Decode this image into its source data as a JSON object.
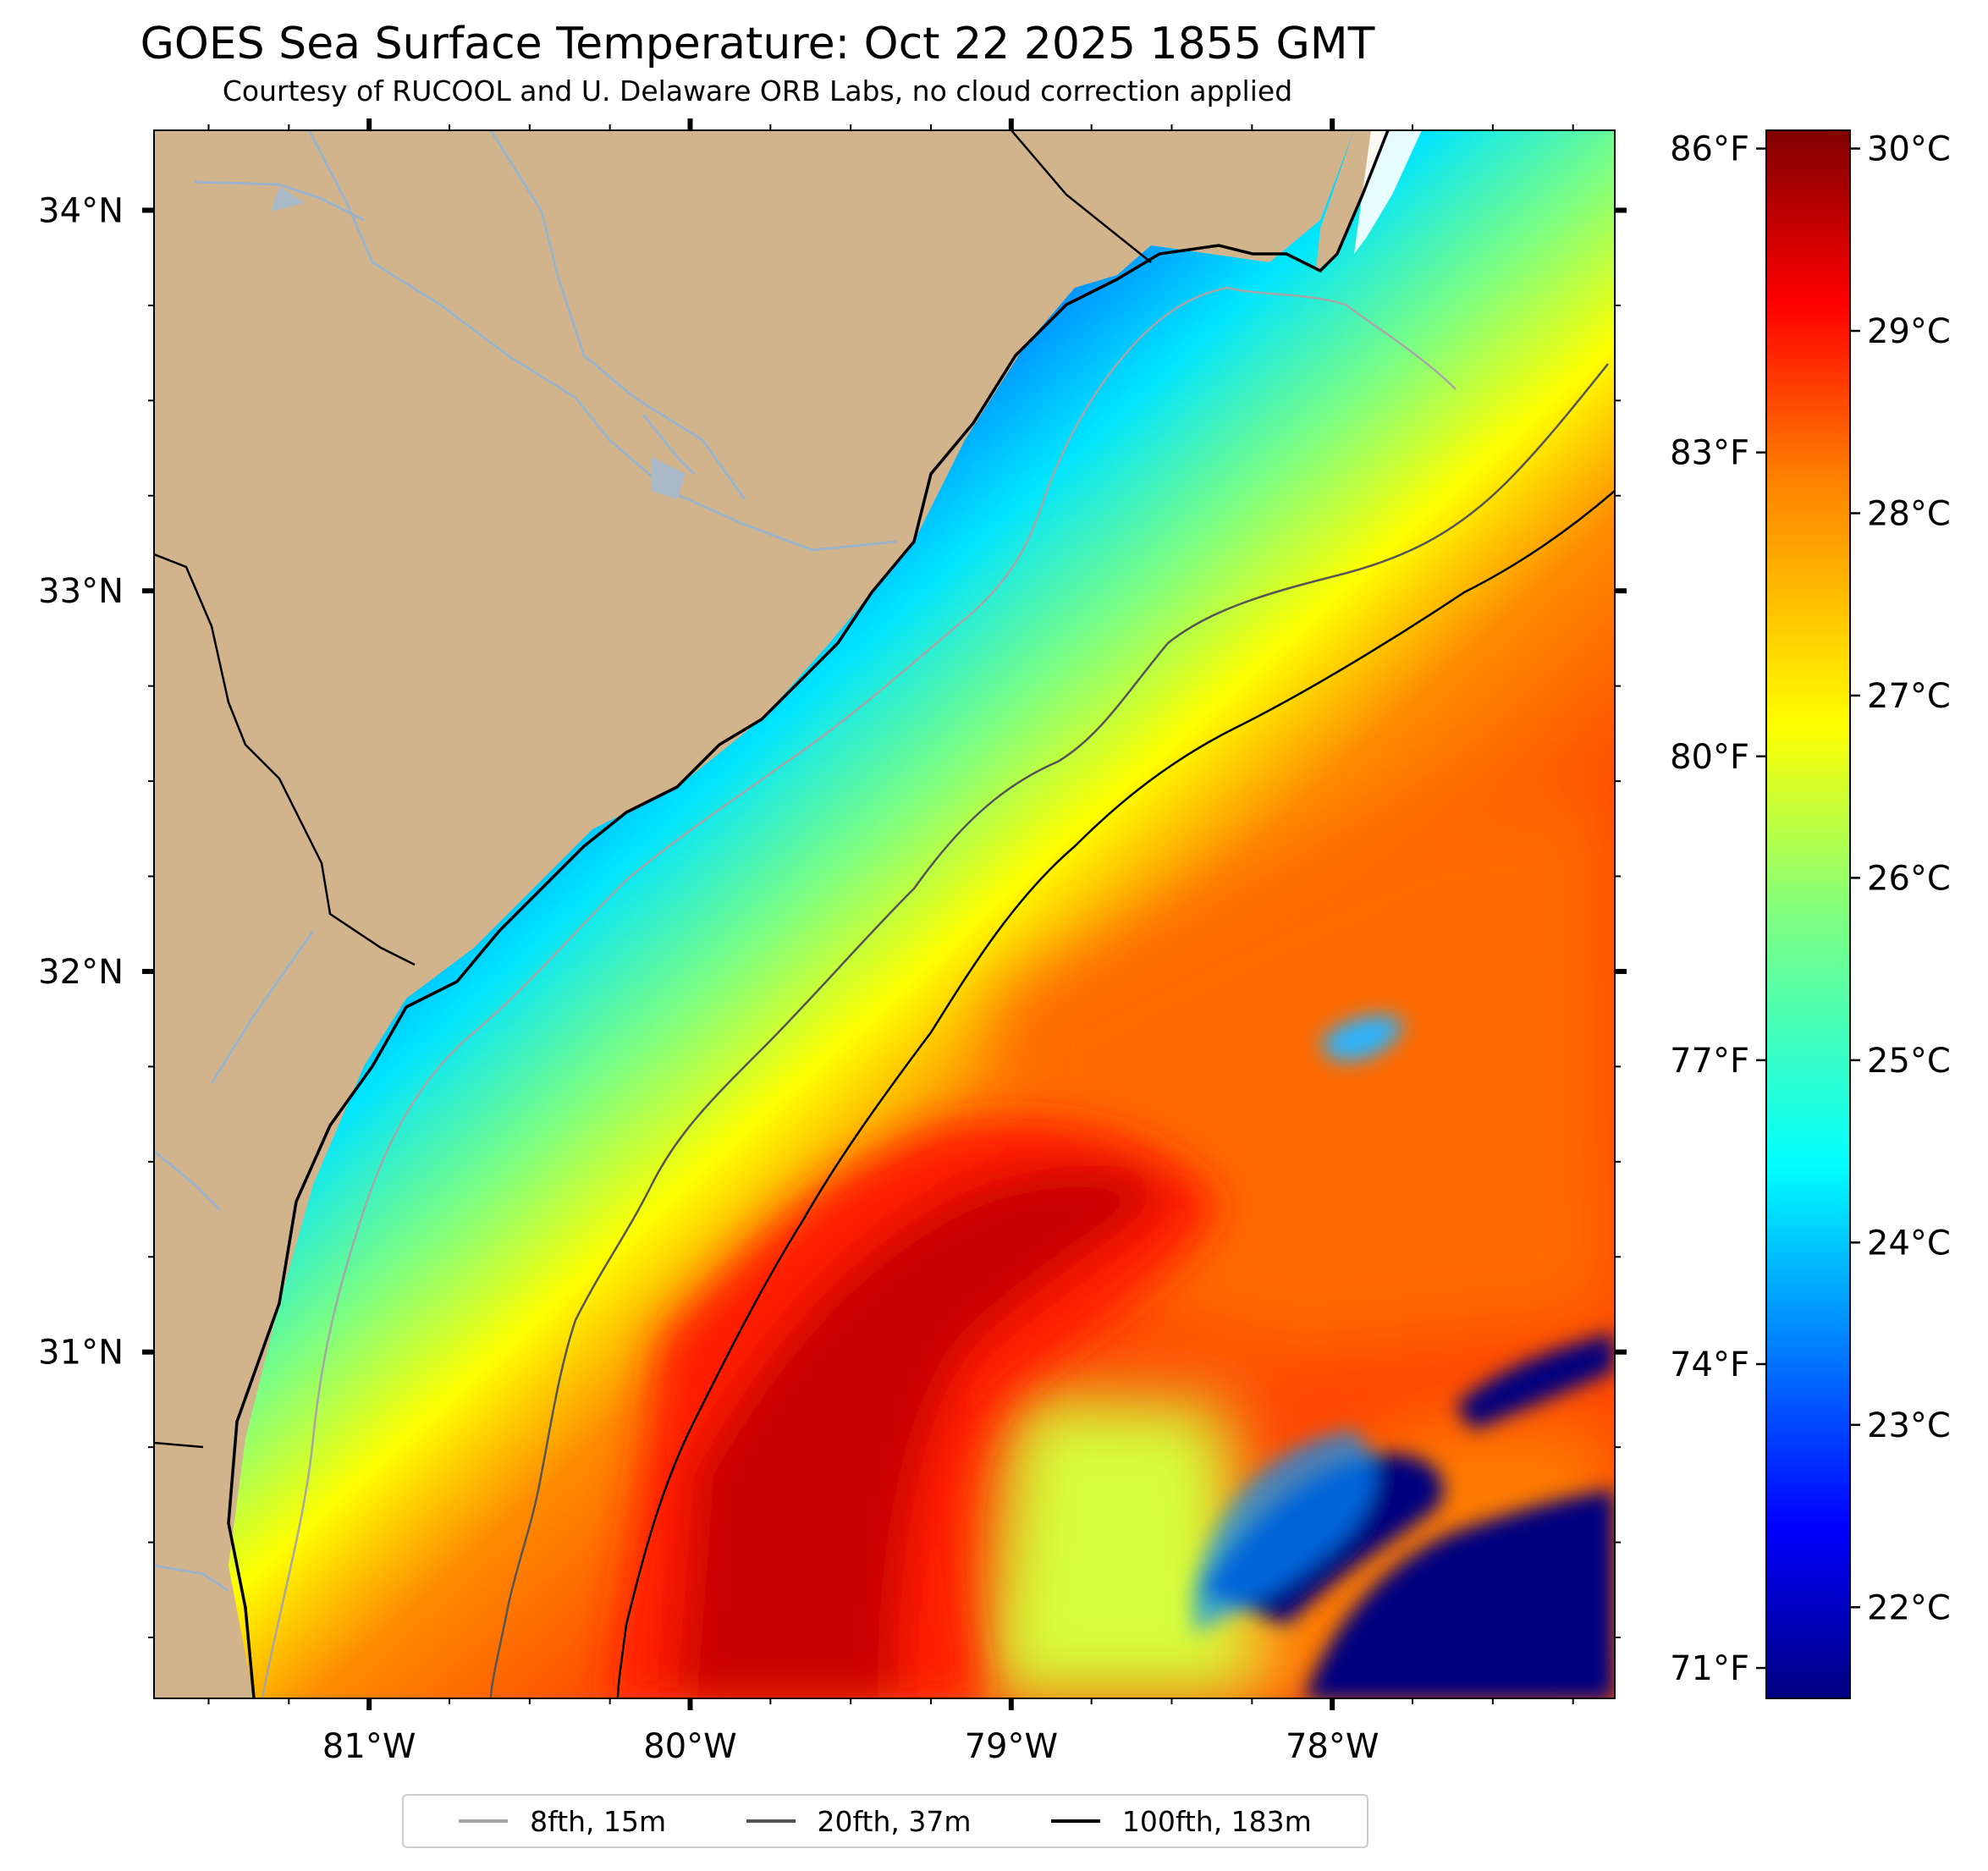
{
  "title": "GOES Sea Surface Temperature: Oct 22 2025 1855 GMT",
  "subtitle": "Courtesy of RUCOOL and U. Delaware ORB Labs, no cloud correction applied",
  "map": {
    "extent": {
      "lon_min": -81.67,
      "lon_max": -77.12,
      "lat_min": 30.09,
      "lat_max": 34.21
    },
    "lon_ticks": [
      {
        "value": -81,
        "label": "81°W"
      },
      {
        "value": -80,
        "label": "80°W"
      },
      {
        "value": -79,
        "label": "79°W"
      },
      {
        "value": -78,
        "label": "78°W"
      }
    ],
    "lat_ticks": [
      {
        "value": 34,
        "label": "34°N"
      },
      {
        "value": 33,
        "label": "33°N"
      },
      {
        "value": 32,
        "label": "32°N"
      },
      {
        "value": 31,
        "label": "31°N"
      }
    ],
    "fahrenheit_ticks": [
      {
        "value": 86,
        "label": "86°F"
      },
      {
        "value": 83,
        "label": "83°F"
      },
      {
        "value": 80,
        "label": "80°F"
      },
      {
        "value": 77,
        "label": "77°F"
      },
      {
        "value": 74,
        "label": "74°F"
      },
      {
        "value": 71,
        "label": "71°F"
      }
    ],
    "land_color": "#d2b48c",
    "colormap": "jet"
  },
  "colorbar": {
    "range_c": [
      21.5,
      30.1
    ],
    "ticks": [
      {
        "value": 30,
        "label": "30°C"
      },
      {
        "value": 29,
        "label": "29°C"
      },
      {
        "value": 28,
        "label": "28°C"
      },
      {
        "value": 27,
        "label": "27°C"
      },
      {
        "value": 26,
        "label": "26°C"
      },
      {
        "value": 25,
        "label": "25°C"
      },
      {
        "value": 24,
        "label": "24°C"
      },
      {
        "value": 23,
        "label": "23°C"
      },
      {
        "value": 22,
        "label": "22°C"
      }
    ],
    "stops": [
      "#00007f",
      "#0000ff",
      "#007fff",
      "#00ffff",
      "#7fff7f",
      "#ffff00",
      "#ff7f00",
      "#ff0000",
      "#7f0000"
    ]
  },
  "legend": [
    {
      "label": "8fth, 15m",
      "color": "#a6a6a6"
    },
    {
      "label": "20fth, 37m",
      "color": "#555555"
    },
    {
      "label": "100fth, 183m",
      "color": "#000000"
    }
  ]
}
